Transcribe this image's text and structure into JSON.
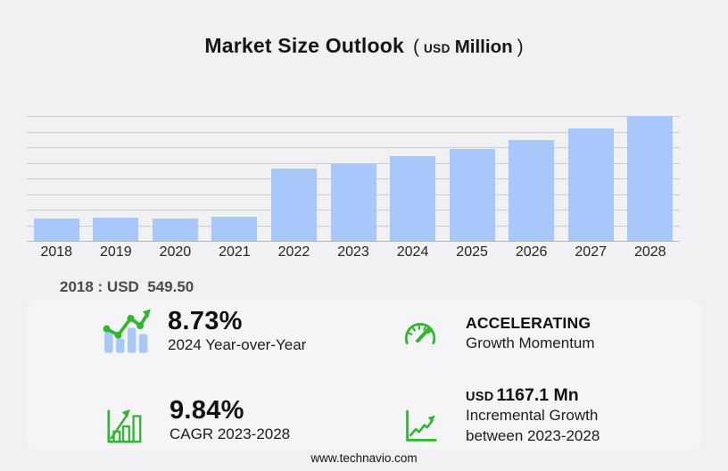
{
  "title": {
    "main": "Market Size Outlook",
    "paren_open": "(",
    "unit_small": "USD",
    "unit_large": "Million",
    "paren_close": ")"
  },
  "chart_data": {
    "type": "bar",
    "title": "Market Size Outlook (USD Million)",
    "xlabel": "",
    "ylabel": "",
    "categories": [
      "2018",
      "2019",
      "2020",
      "2021",
      "2022",
      "2023",
      "2024",
      "2025",
      "2026",
      "2027",
      "2028"
    ],
    "values": [
      549.5,
      585,
      565,
      595,
      1800,
      1951,
      2121,
      2290,
      2530,
      2820,
      3118
    ],
    "ylim": [
      0,
      3120
    ],
    "grid": true,
    "gridline_count": 9,
    "legend": false,
    "bar_color": "#a8c7fb",
    "annotations": [
      "2018 : USD  549.50"
    ]
  },
  "annotation": {
    "label": "2018 : USD  549.50"
  },
  "stats": [
    {
      "icon": "bar-chart-trend-icon",
      "value": "8.73%",
      "label": "2024 Year-over-Year"
    },
    {
      "icon": "speedometer-icon",
      "value": "ACCELERATING",
      "label": "Growth Momentum"
    },
    {
      "icon": "growth-bars-icon",
      "value": "9.84%",
      "label": "CAGR 2023-2028"
    },
    {
      "icon": "line-growth-icon",
      "prefix": "USD",
      "value": "1167.1 Mn",
      "label": "Incremental Growth",
      "label2": "between 2023-2028"
    }
  ],
  "footer": {
    "url": "www.technavio.com"
  },
  "colors": {
    "background": "#f1f1f3",
    "panel": "#f5f5f7",
    "bar": "#a8c7fb",
    "gridline": "#cbcbce",
    "axis": "#b6b6b9",
    "accent_green": "#2eb82e",
    "text_dark": "#111111",
    "text_gray": "#4b4b4b"
  }
}
